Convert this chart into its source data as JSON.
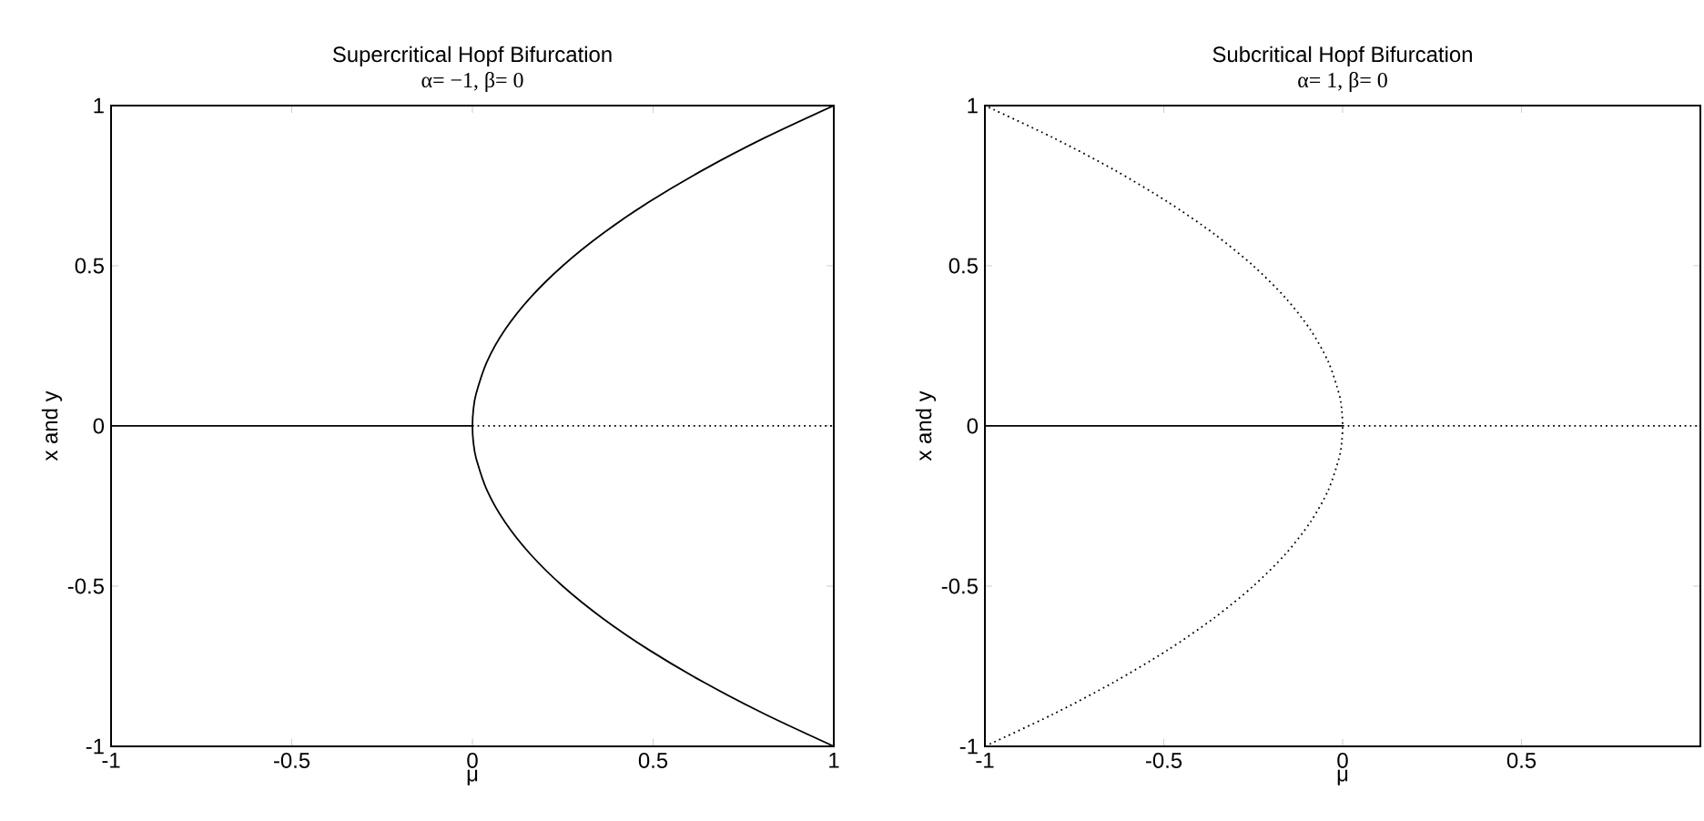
{
  "chart_data": [
    {
      "type": "line",
      "title": "Supercritical Hopf Bifurcation",
      "subtitle": "α= −1, β= 0",
      "xlabel": "μ",
      "ylabel": "x and y",
      "xlim": [
        -1,
        1
      ],
      "ylim": [
        -1,
        1
      ],
      "xticks": [
        -1,
        -0.5,
        0,
        0.5,
        1
      ],
      "yticks": [
        -1,
        -0.5,
        0,
        0.5,
        1
      ],
      "grid": false,
      "series": [
        {
          "color": "#000000",
          "line_style": "solid",
          "x": [
            -1,
            0
          ],
          "values": [
            0,
            0
          ]
        },
        {
          "color": "#000000",
          "line_style": "dotted",
          "x": [
            0,
            1
          ],
          "values": [
            0,
            0
          ]
        },
        {
          "color": "#000000",
          "line_style": "solid",
          "x": [
            1,
            0.81,
            0.64,
            0.49,
            0.36,
            0.25,
            0.16,
            0.09,
            0.04,
            0.01,
            0.0025,
            0,
            0.0025,
            0.01,
            0.04,
            0.09,
            0.16,
            0.25,
            0.36,
            0.49,
            0.64,
            0.81,
            1
          ],
          "values": [
            -1,
            -0.9,
            -0.8,
            -0.7,
            -0.6,
            -0.5,
            -0.4,
            -0.3,
            -0.2,
            -0.1,
            -0.05,
            0,
            0.05,
            0.1,
            0.2,
            0.3,
            0.4,
            0.5,
            0.6,
            0.7,
            0.8,
            0.9,
            1
          ]
        }
      ]
    },
    {
      "type": "line",
      "title": "Subcritical Hopf Bifurcation",
      "subtitle": "α= 1, β= 0",
      "xlabel": "μ",
      "ylabel": "x and y",
      "xlim": [
        -1,
        1
      ],
      "ylim": [
        -1,
        1
      ],
      "xticks": [
        -1,
        -0.5,
        0,
        0.5,
        {
          "value": 1,
          "label": null
        }
      ],
      "yticks": [
        -1,
        -0.5,
        0,
        0.5,
        1
      ],
      "grid": false,
      "series": [
        {
          "color": "#000000",
          "line_style": "solid",
          "x": [
            -1,
            0
          ],
          "values": [
            0,
            0
          ]
        },
        {
          "color": "#000000",
          "line_style": "dotted",
          "x": [
            0,
            1
          ],
          "values": [
            0,
            0
          ]
        },
        {
          "color": "#000000",
          "line_style": "dotted",
          "x": [
            -1,
            -0.81,
            -0.64,
            -0.49,
            -0.36,
            -0.25,
            -0.16,
            -0.09,
            -0.04,
            -0.01,
            -0.0025,
            0,
            -0.0025,
            -0.01,
            -0.04,
            -0.09,
            -0.16,
            -0.25,
            -0.36,
            -0.49,
            -0.64,
            -0.81,
            -1
          ],
          "values": [
            -1,
            -0.9,
            -0.8,
            -0.7,
            -0.6,
            -0.5,
            -0.4,
            -0.3,
            -0.2,
            -0.1,
            -0.05,
            0,
            0.05,
            0.1,
            0.2,
            0.3,
            0.4,
            0.5,
            0.6,
            0.7,
            0.8,
            0.9,
            1
          ]
        }
      ]
    }
  ]
}
